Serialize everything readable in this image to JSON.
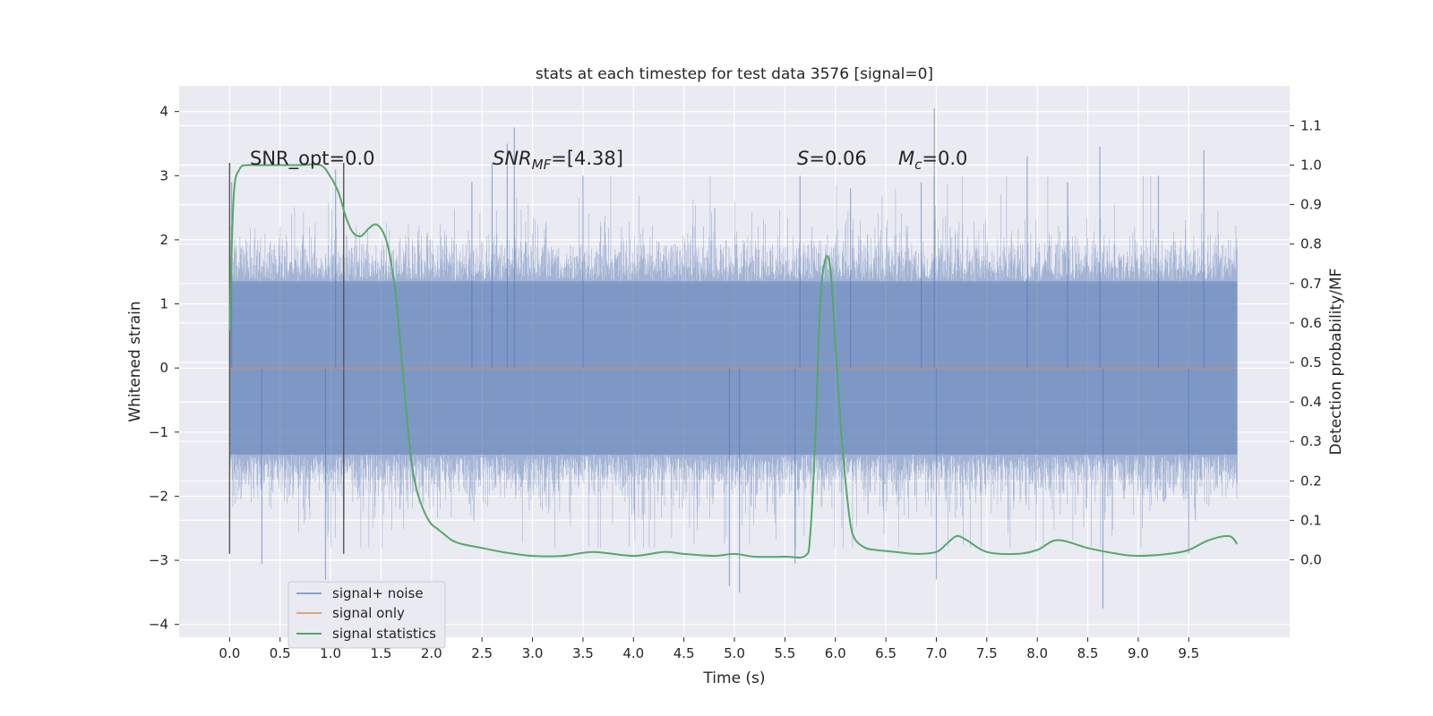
{
  "chart_data": {
    "type": "line",
    "title": "stats at each timestep for test data 3576 [signal=0]",
    "xlabel": "Time (s)",
    "ylabel": "Whitened strain",
    "ylabel_right": "Detection probability/MF",
    "xlim": [
      -0.5,
      10.5
    ],
    "ylim": [
      -4.2,
      4.4
    ],
    "ylim_right": [
      -0.2,
      1.2
    ],
    "x_ticks": [
      "0.0",
      "0.5",
      "1.0",
      "1.5",
      "2.0",
      "2.5",
      "3.0",
      "3.5",
      "4.0",
      "4.5",
      "5.0",
      "5.5",
      "6.0",
      "6.5",
      "7.0",
      "7.5",
      "8.0",
      "8.5",
      "9.0",
      "9.5"
    ],
    "y_ticks": [
      "4",
      "3",
      "2",
      "1",
      "0",
      "−1",
      "−2",
      "−3",
      "−4"
    ],
    "y_ticks_right": [
      "1.1",
      "1.0",
      "0.9",
      "0.8",
      "0.7",
      "0.6",
      "0.5",
      "0.4",
      "0.3",
      "0.2",
      "0.1",
      "0.0"
    ],
    "grid": true,
    "legend_position": "lower-left",
    "annotations": {
      "snr_opt": "SNR_opt=0.0",
      "snr_mf": "SNR",
      "snr_mf_sub": "MF",
      "snr_mf_value": "=[4.38]",
      "s_var": "S",
      "s_value": "=0.06",
      "mc_var": "M",
      "mc_sub": "c",
      "mc_value": "=0.0"
    },
    "vlines": [
      {
        "x": 0.0,
        "y0": -2.9,
        "y1": 3.2
      },
      {
        "x": 1.13,
        "y0": -2.9,
        "y1": 3.2
      }
    ],
    "series": [
      {
        "name": "signal+ noise",
        "color": "#4c72b0",
        "axis": "left",
        "noise_band": {
          "x_start": 0.0,
          "x_end": 9.98,
          "typical_amplitude": 1.35,
          "max": 4.05,
          "min": -3.75
        },
        "spikes": [
          {
            "x": 0.02,
            "y": 2.9
          },
          {
            "x": 0.32,
            "y": -3.05
          },
          {
            "x": 0.95,
            "y": -3.3
          },
          {
            "x": 1.05,
            "y": 3.1
          },
          {
            "x": 2.4,
            "y": 2.9
          },
          {
            "x": 2.6,
            "y": 3.2
          },
          {
            "x": 2.75,
            "y": 3.5
          },
          {
            "x": 2.82,
            "y": 3.75
          },
          {
            "x": 3.5,
            "y": 3.0
          },
          {
            "x": 4.95,
            "y": -3.4
          },
          {
            "x": 5.05,
            "y": -3.5
          },
          {
            "x": 5.6,
            "y": -3.05
          },
          {
            "x": 5.65,
            "y": 3.0
          },
          {
            "x": 6.15,
            "y": 2.8
          },
          {
            "x": 6.85,
            "y": 2.9
          },
          {
            "x": 6.98,
            "y": 4.05
          },
          {
            "x": 7.0,
            "y": -3.3
          },
          {
            "x": 7.9,
            "y": 3.3
          },
          {
            "x": 8.3,
            "y": 2.9
          },
          {
            "x": 8.62,
            "y": 3.45
          },
          {
            "x": 8.65,
            "y": -3.75
          },
          {
            "x": 9.2,
            "y": 3.0
          },
          {
            "x": 9.5,
            "y": -2.9
          },
          {
            "x": 9.65,
            "y": 3.4
          }
        ]
      },
      {
        "name": "signal only",
        "color": "#dd8452",
        "axis": "left",
        "x": [
          0.0,
          9.98
        ],
        "y": [
          0.0,
          0.0
        ]
      },
      {
        "name": "signal statistics",
        "color": "#55a868",
        "axis": "right",
        "x": [
          0.0,
          0.04,
          0.1,
          0.18,
          0.3,
          0.5,
          0.7,
          0.9,
          1.0,
          1.08,
          1.15,
          1.22,
          1.3,
          1.38,
          1.45,
          1.52,
          1.58,
          1.65,
          1.7,
          1.75,
          1.8,
          1.85,
          1.9,
          1.95,
          2.0,
          2.05,
          2.1,
          2.2,
          2.3,
          2.5,
          2.7,
          3.0,
          3.3,
          3.6,
          4.0,
          4.3,
          4.5,
          4.8,
          5.0,
          5.2,
          5.5,
          5.7,
          5.75,
          5.8,
          5.85,
          5.9,
          5.95,
          6.0,
          6.05,
          6.1,
          6.15,
          6.2,
          6.3,
          6.4,
          6.6,
          6.8,
          7.0,
          7.1,
          7.2,
          7.3,
          7.5,
          7.8,
          8.0,
          8.2,
          8.5,
          8.8,
          9.0,
          9.3,
          9.5,
          9.7,
          9.9,
          9.98
        ],
        "y": [
          0.58,
          0.92,
          0.99,
          1.0,
          1.0,
          1.0,
          1.0,
          1.0,
          0.97,
          0.93,
          0.87,
          0.83,
          0.82,
          0.84,
          0.85,
          0.83,
          0.78,
          0.66,
          0.52,
          0.38,
          0.25,
          0.18,
          0.14,
          0.11,
          0.09,
          0.08,
          0.07,
          0.05,
          0.04,
          0.03,
          0.02,
          0.01,
          0.01,
          0.02,
          0.01,
          0.02,
          0.015,
          0.01,
          0.015,
          0.008,
          0.008,
          0.01,
          0.06,
          0.3,
          0.65,
          0.76,
          0.74,
          0.55,
          0.35,
          0.2,
          0.09,
          0.05,
          0.03,
          0.025,
          0.02,
          0.015,
          0.02,
          0.04,
          0.06,
          0.05,
          0.02,
          0.015,
          0.025,
          0.05,
          0.03,
          0.015,
          0.01,
          0.015,
          0.025,
          0.05,
          0.06,
          0.04
        ]
      }
    ]
  }
}
